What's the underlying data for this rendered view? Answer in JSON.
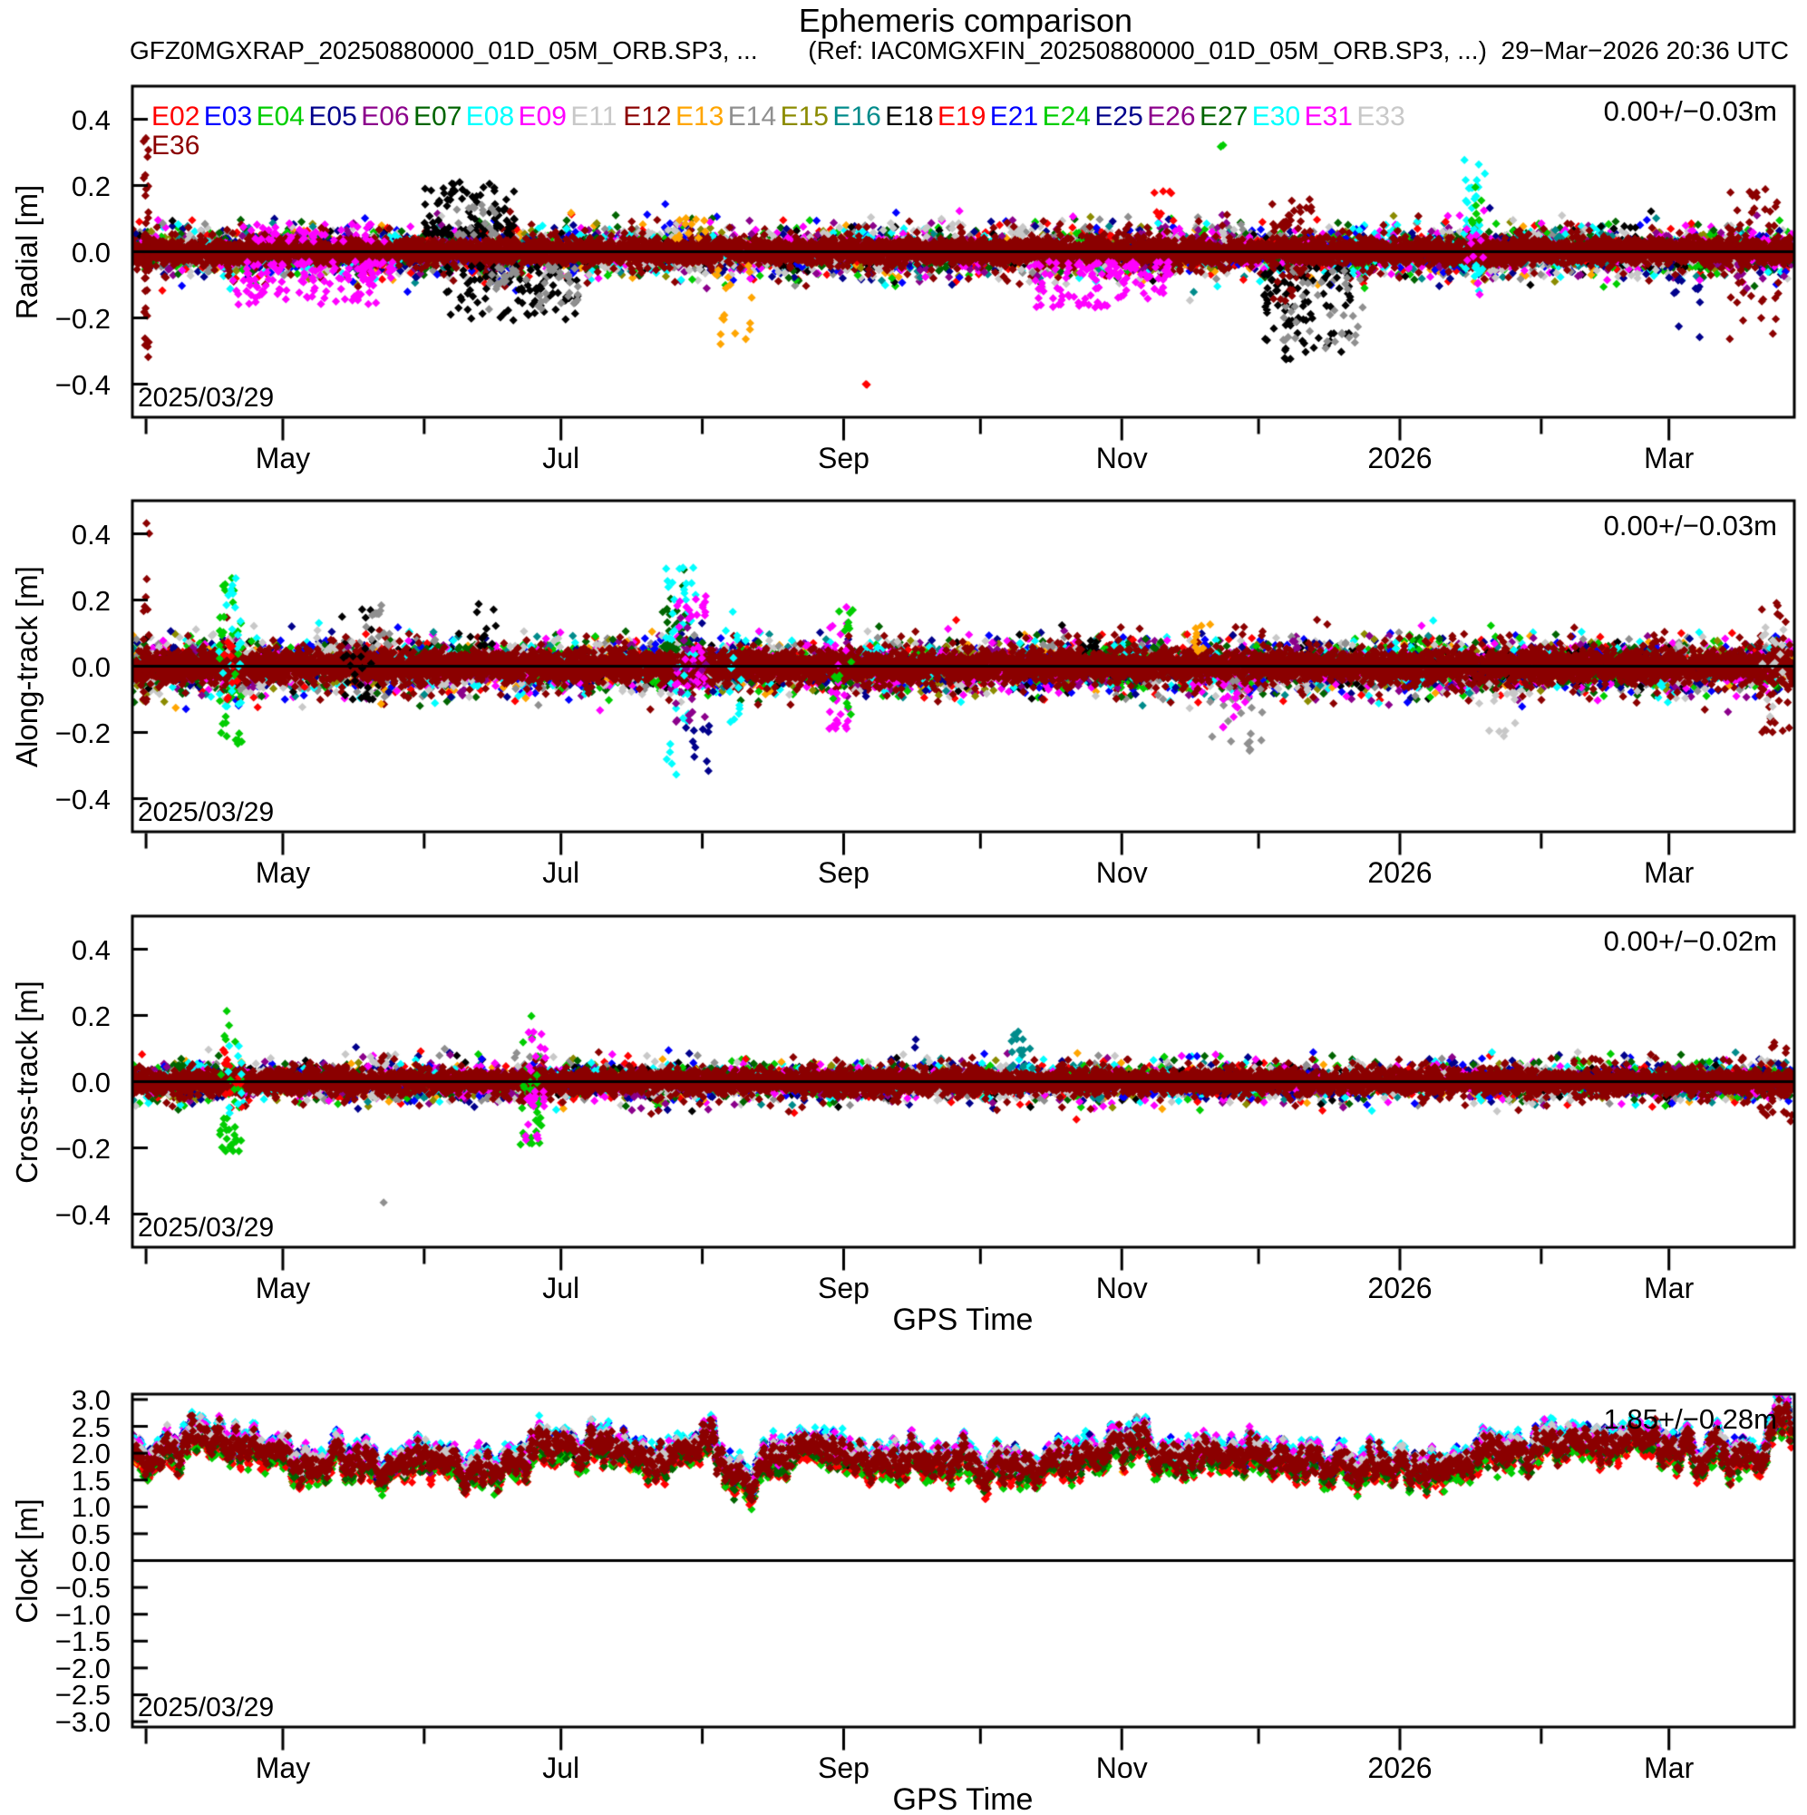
{
  "header": {
    "title": "Ephemeris comparison",
    "file_label": "GFZ0MGXRAP_20250880000_01D_05M_ORB.SP3, ...",
    "ref_label": "(Ref: IAC0MGXFIN_20250880000_01D_05M_ORB.SP3, ...)",
    "timestamp": "29−Mar−2026 20:36 UTC"
  },
  "legend": {
    "satellites": [
      {
        "id": "E02",
        "color": "#ff0000"
      },
      {
        "id": "E03",
        "color": "#0000ff"
      },
      {
        "id": "E04",
        "color": "#00cd00"
      },
      {
        "id": "E05",
        "color": "#00008b"
      },
      {
        "id": "E06",
        "color": "#8b008b"
      },
      {
        "id": "E07",
        "color": "#006400"
      },
      {
        "id": "E08",
        "color": "#00ffff"
      },
      {
        "id": "E09",
        "color": "#ff00ff"
      },
      {
        "id": "E11",
        "color": "#c8c8c8"
      },
      {
        "id": "E12",
        "color": "#8b0000"
      },
      {
        "id": "E13",
        "color": "#ffa500"
      },
      {
        "id": "E14",
        "color": "#8f8f8f"
      },
      {
        "id": "E15",
        "color": "#8b8b00"
      },
      {
        "id": "E16",
        "color": "#008b8b"
      },
      {
        "id": "E18",
        "color": "#000000"
      },
      {
        "id": "E19",
        "color": "#ff0000"
      },
      {
        "id": "E21",
        "color": "#0000ff"
      },
      {
        "id": "E24",
        "color": "#00cd00"
      },
      {
        "id": "E25",
        "color": "#00008b"
      },
      {
        "id": "E26",
        "color": "#8b008b"
      },
      {
        "id": "E27",
        "color": "#006400"
      },
      {
        "id": "E30",
        "color": "#00ffff"
      },
      {
        "id": "E31",
        "color": "#ff00ff"
      },
      {
        "id": "E33",
        "color": "#c8c8c8"
      },
      {
        "id": "E36",
        "color": "#8b0000"
      }
    ]
  },
  "x_axis": {
    "label": "GPS Time",
    "span_days": 364.5,
    "ticks": [
      {
        "day": 3,
        "label": ""
      },
      {
        "day": 33,
        "label": "May"
      },
      {
        "day": 64,
        "label": ""
      },
      {
        "day": 94,
        "label": "Jul"
      },
      {
        "day": 125,
        "label": ""
      },
      {
        "day": 156,
        "label": "Sep"
      },
      {
        "day": 186,
        "label": ""
      },
      {
        "day": 217,
        "label": "Nov"
      },
      {
        "day": 247,
        "label": ""
      },
      {
        "day": 278,
        "label": "2026"
      },
      {
        "day": 309,
        "label": ""
      },
      {
        "day": 337,
        "label": "Mar"
      }
    ]
  },
  "chart_data": {
    "type": "scatter",
    "description": "Galileo satellite orbit/clock differences GFZ rapid vs IAC final over 2025/03/29..2026/03/29; per-satellite colored point clouds centered on zero (orbit panels) and a clock offset band near 1.85 m.",
    "panels": [
      {
        "name": "Radial",
        "ylabel": "Radial [m]",
        "ylim": [
          -0.5,
          0.5
        ],
        "ytick_vals": [
          0.4,
          0.2,
          0.0,
          -0.2,
          -0.4
        ],
        "ytick_labels": [
          "0.4",
          "0.2",
          "0.0",
          "−0.2",
          "−0.4"
        ],
        "stat_label": "0.00+/−0.03m",
        "date_label": "2025/03/29",
        "show_gps_label": false,
        "sigma": 0.022,
        "e36_sigma": 0.017,
        "anomalies": [
          [
            "E36",
            2.4,
            3.6,
            0.1,
            0.37,
            12
          ],
          [
            "E36",
            2.4,
            3.6,
            -0.34,
            -0.05,
            14
          ],
          [
            "E36",
            2.4,
            3.6,
            -0.06,
            0.1,
            8
          ],
          [
            "E09",
            22,
            58,
            -0.16,
            -0.03,
            120
          ],
          [
            "E09",
            24,
            56,
            0.03,
            0.09,
            40
          ],
          [
            "E18",
            64,
            85,
            0.05,
            0.21,
            90
          ],
          [
            "E18",
            68,
            98,
            -0.21,
            -0.04,
            90
          ],
          [
            "E14",
            78,
            98,
            -0.18,
            -0.04,
            45
          ],
          [
            "E14",
            70,
            80,
            0.05,
            0.15,
            20
          ],
          [
            "E13",
            128,
            136,
            -0.29,
            -0.04,
            16
          ],
          [
            "E13",
            118,
            127,
            0.04,
            0.12,
            12
          ],
          [
            "E02",
            160.5,
            161.5,
            -0.41,
            -0.39,
            2
          ],
          [
            "E09",
            198,
            228,
            -0.17,
            -0.03,
            110
          ],
          [
            "E02",
            224,
            229,
            0.08,
            0.19,
            8
          ],
          [
            "E24",
            238,
            239.5,
            0.31,
            0.33,
            2
          ],
          [
            "E18",
            248,
            268,
            -0.33,
            -0.05,
            100
          ],
          [
            "E14",
            252,
            270,
            -0.3,
            -0.05,
            40
          ],
          [
            "E36",
            250,
            259,
            0.05,
            0.16,
            22
          ],
          [
            "E36",
            250,
            259,
            -0.15,
            -0.05,
            12
          ],
          [
            "E30",
            292,
            297,
            0.05,
            0.28,
            24
          ],
          [
            "E30",
            292,
            297,
            -0.16,
            -0.04,
            10
          ],
          [
            "E04",
            293,
            296,
            0.08,
            0.22,
            8
          ],
          [
            "E31",
            292,
            297,
            -0.13,
            0.13,
            12
          ],
          [
            "E36",
            350,
            361,
            -0.27,
            0.19,
            42
          ],
          [
            "E25",
            337,
            345,
            -0.26,
            -0.07,
            10
          ]
        ]
      },
      {
        "name": "Along-track",
        "ylabel": "Along-track [m]",
        "ylim": [
          -0.5,
          0.5
        ],
        "ytick_vals": [
          0.4,
          0.2,
          0.0,
          -0.2,
          -0.4
        ],
        "ytick_labels": [
          "0.4",
          "0.2",
          "0.0",
          "−0.2",
          "−0.4"
        ],
        "stat_label": "0.00+/−0.03m",
        "date_label": "2025/03/29",
        "show_gps_label": false,
        "sigma": 0.025,
        "e36_sigma": 0.021,
        "anomalies": [
          [
            "E36",
            2.2,
            3.8,
            0.15,
            0.47,
            7
          ],
          [
            "E36",
            2.2,
            4.2,
            -0.13,
            0.12,
            14
          ],
          [
            "E04",
            19,
            24,
            -0.24,
            0.27,
            40
          ],
          [
            "E08",
            19,
            24,
            -0.13,
            0.27,
            26
          ],
          [
            "E02",
            20,
            23,
            -0.1,
            0.11,
            10
          ],
          [
            "E18",
            46,
            53,
            -0.1,
            0.18,
            26
          ],
          [
            "E14",
            52,
            57,
            0.04,
            0.21,
            14
          ],
          [
            "E18",
            74,
            80,
            0.06,
            0.2,
            12
          ],
          [
            "E07",
            116,
            122,
            0.05,
            0.34,
            30
          ],
          [
            "E08",
            117,
            124,
            -0.34,
            0.3,
            42
          ],
          [
            "E31",
            119,
            126,
            -0.06,
            0.22,
            30
          ],
          [
            "E05",
            121,
            127,
            -0.33,
            -0.18,
            10
          ],
          [
            "E06",
            119,
            126,
            -0.17,
            0.17,
            18
          ],
          [
            "E08",
            130,
            134,
            -0.17,
            0.17,
            14
          ],
          [
            "E31",
            151,
            157,
            -0.19,
            0.19,
            26
          ],
          [
            "E24",
            153,
            158,
            -0.21,
            0.17,
            16
          ],
          [
            "E13",
            232,
            238,
            0.04,
            0.13,
            8
          ],
          [
            "E14",
            236,
            248,
            -0.28,
            -0.04,
            22
          ],
          [
            "E31",
            239,
            245,
            -0.2,
            -0.04,
            12
          ],
          [
            "E11",
            297,
            304,
            -0.23,
            -0.04,
            12
          ],
          [
            "E36",
            357,
            364,
            -0.2,
            0.2,
            28
          ],
          [
            "E33",
            357,
            364,
            -0.18,
            0.12,
            14
          ]
        ]
      },
      {
        "name": "Cross-track",
        "ylabel": "Cross-track [m]",
        "ylim": [
          -0.5,
          0.5
        ],
        "ytick_vals": [
          0.4,
          0.2,
          0.0,
          -0.2,
          -0.4
        ],
        "ytick_labels": [
          "0.4",
          "0.2",
          "0.0",
          "−0.2",
          "−0.4"
        ],
        "stat_label": "0.00+/−0.02m",
        "date_label": "2025/03/29",
        "show_gps_label": true,
        "sigma": 0.018,
        "e36_sigma": 0.0155,
        "anomalies": [
          [
            "E04",
            19,
            24,
            -0.21,
            0.22,
            38
          ],
          [
            "E02",
            19,
            24,
            -0.08,
            0.13,
            12
          ],
          [
            "E08",
            20,
            24,
            -0.12,
            0.11,
            10
          ],
          [
            "E14",
            55,
            55.6,
            -0.38,
            -0.36,
            1
          ],
          [
            "E04",
            85,
            90,
            -0.19,
            0.2,
            32
          ],
          [
            "E31",
            86,
            91,
            -0.18,
            -0.03,
            18
          ],
          [
            "E09",
            86,
            91,
            0.03,
            0.16,
            10
          ],
          [
            "E16",
            192,
            198,
            0.04,
            0.16,
            16
          ],
          [
            "E05",
            171,
            173,
            0.1,
            0.13,
            2
          ],
          [
            "E36",
            357,
            364,
            -0.12,
            0.12,
            20
          ]
        ]
      },
      {
        "name": "Clock",
        "ylabel": "Clock [m]",
        "ylim": [
          -3.1,
          3.1
        ],
        "ytick_vals": [
          3.0,
          2.5,
          2.0,
          1.5,
          1.0,
          0.5,
          0.0,
          -0.5,
          -1.0,
          -1.5,
          -2.0,
          -2.5,
          -3.0
        ],
        "ytick_labels": [
          "3.0",
          "2.5",
          "2.0",
          "1.5",
          "1.0",
          "0.5",
          "0.0",
          "−0.5",
          "−1.0",
          "−1.5",
          "−2.0",
          "−2.5",
          "−3.0"
        ],
        "stat_label": "1.85+/−0.28m",
        "date_label": "2025/03/29",
        "show_gps_label": true,
        "baseline": {
          "mean": 1.84,
          "components": [
            [
              0.15,
              6.3,
              0.8,
              43,
              1.0
            ],
            [
              0.17,
              1.9,
              2.0,
              13,
              2.5
            ],
            [
              0.1,
              3.7,
              0.5,
              29,
              4.0
            ],
            [
              0.11,
              19,
              4.2,
              101,
              0.3
            ],
            [
              0.07,
              47,
              1.2,
              157,
              2.2
            ]
          ],
          "walk_step": 0.04,
          "walk_decay": 0.99,
          "walk_gain": 2.5,
          "clamp": [
            1.12,
            2.5
          ],
          "events": [
            [
              74,
              -0.28,
              3
            ],
            [
              133,
              -0.42,
              2.5
            ],
            [
              186,
              -0.3,
              2
            ],
            [
              240,
              -0.22,
              2
            ],
            [
              300,
              0.3,
              4
            ],
            [
              362,
              0.75,
              2
            ]
          ],
          "final_clamp": [
            0.95,
            2.95
          ]
        },
        "offsets": {
          "#ff0000": -0.15,
          "#00cd00": -0.2,
          "#00ffff": 0.17,
          "#ff00ff": 0.13,
          "#0000ff": 0.12,
          "#00008b": 0.09,
          "#c8c8c8": 0.11,
          "#8f8f8f": 0.08,
          "#8b008b": 0.06,
          "#006400": -0.08,
          "#008b8b": 0.04,
          "#8b8b00": -0.04,
          "#ffa500": -0.06,
          "#000000": 0.02,
          "#8b0000": 0.0,
          "default": 0.05
        },
        "spread": 0.065,
        "e36_spread": 0.105,
        "samples_per_day": 3,
        "e36_samples_per_day": 7
      }
    ]
  }
}
